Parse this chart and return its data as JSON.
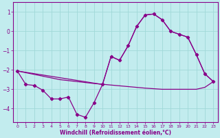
{
  "xlabel": "Windchill (Refroidissement éolien,°C)",
  "xlim": [
    -0.5,
    23.5
  ],
  "ylim": [
    -4.7,
    1.5
  ],
  "yticks": [
    1,
    0,
    -1,
    -2,
    -3,
    -4
  ],
  "xticks": [
    0,
    1,
    2,
    3,
    4,
    5,
    6,
    7,
    8,
    9,
    10,
    11,
    12,
    13,
    14,
    15,
    16,
    17,
    18,
    19,
    20,
    21,
    22,
    23
  ],
  "bg_color": "#c2ecee",
  "line_color": "#880088",
  "grid_color": "#a0d8d8",
  "line1_x": [
    0,
    1,
    2,
    3,
    4,
    5,
    6,
    7,
    8,
    9,
    10,
    11,
    12,
    13,
    14,
    15,
    16,
    17,
    18,
    19,
    20,
    21,
    22,
    23
  ],
  "line1_y": [
    -2.05,
    -2.75,
    -2.8,
    -3.05,
    -3.5,
    -3.5,
    -3.4,
    -4.3,
    -4.45,
    -3.7,
    -2.75,
    -1.3,
    -1.5,
    -0.75,
    0.25,
    0.85,
    0.9,
    0.6,
    0.0,
    -0.15,
    -0.3,
    -1.2,
    -2.2,
    -2.6
  ],
  "line2_x": [
    0,
    1,
    2,
    3,
    4,
    5,
    6,
    7,
    8,
    9,
    10,
    11,
    12,
    13,
    14,
    15,
    16,
    17,
    18,
    19,
    20,
    21,
    22,
    23
  ],
  "line2_y": [
    -2.05,
    -2.14,
    -2.23,
    -2.32,
    -2.41,
    -2.5,
    -2.55,
    -2.6,
    -2.65,
    -2.7,
    -2.74,
    -2.78,
    -2.82,
    -2.86,
    -2.9,
    -2.94,
    -2.97,
    -3.0,
    -3.0,
    -3.0,
    -3.0,
    -3.0,
    -2.9,
    -2.6
  ],
  "line3_x": [
    0,
    10,
    11,
    12,
    13,
    14,
    15,
    16,
    17,
    18,
    19,
    20,
    21,
    22,
    23
  ],
  "line3_y": [
    -2.05,
    -2.75,
    -1.3,
    -1.5,
    -0.75,
    0.25,
    0.85,
    0.9,
    0.6,
    0.0,
    -0.15,
    -0.3,
    -1.2,
    -2.2,
    -2.6
  ]
}
